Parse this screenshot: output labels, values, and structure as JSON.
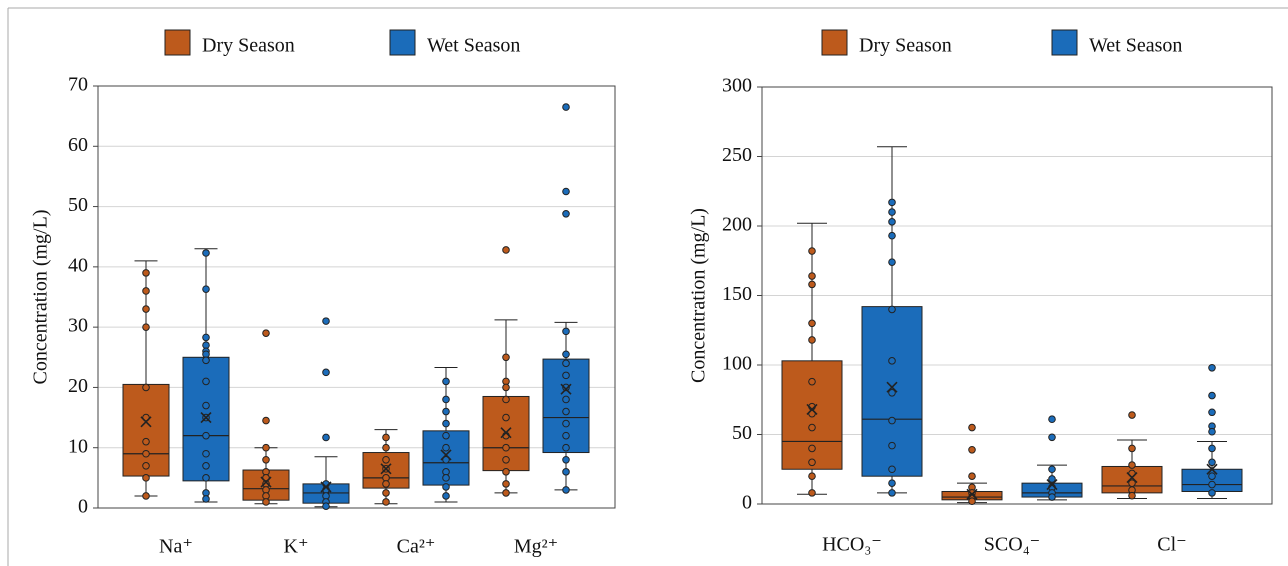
{
  "chart_data": [
    {
      "type": "box",
      "ylabel": "Concentration (mg/L)",
      "categories": [
        "Na⁺",
        "K⁺",
        "Ca²⁺",
        "Mg²⁺"
      ],
      "ylim": [
        0,
        70
      ],
      "yticks": [
        0,
        10,
        20,
        30,
        40,
        50,
        60,
        70
      ],
      "grid": true,
      "series": [
        {
          "name": "Dry Season",
          "color": "#bd5a1c",
          "min": [
            2,
            0.7,
            0.7,
            2.5
          ],
          "q1": [
            5.3,
            1.3,
            3.3,
            6.2
          ],
          "median": [
            9,
            3.2,
            5,
            10
          ],
          "q3": [
            20.5,
            6.3,
            9.2,
            18.5
          ],
          "max": [
            41,
            10,
            13,
            31.2
          ],
          "mean": [
            14.3,
            4.3,
            6.5,
            12.5
          ],
          "points": [
            [
              39,
              36,
              33,
              30,
              20,
              15,
              11,
              9,
              7,
              5,
              2
            ],
            [
              29,
              14.5,
              10,
              8,
              6,
              5,
              4,
              3,
              2,
              1
            ],
            [
              11.7,
              10,
              8,
              6.5,
              5,
              4,
              2.5,
              1
            ],
            [
              42.8,
              25,
              21,
              20,
              18,
              15,
              12,
              10,
              8,
              6,
              4,
              2.5
            ]
          ]
        },
        {
          "name": "Wet Season",
          "color": "#1b6cba",
          "min": [
            1,
            0.2,
            1,
            3
          ],
          "q1": [
            4.5,
            0.8,
            3.8,
            9.2
          ],
          "median": [
            12,
            2.5,
            7.5,
            15
          ],
          "q3": [
            25,
            4,
            12.8,
            24.7
          ],
          "max": [
            43,
            8.5,
            23.3,
            30.8
          ],
          "mean": [
            15,
            3.5,
            8.8,
            19.7
          ],
          "points": [
            [
              42.3,
              36.3,
              28.3,
              27,
              26,
              25.5,
              24.5,
              21,
              17,
              15,
              12,
              9,
              7,
              5,
              2.5,
              1.5
            ],
            [
              31,
              22.5,
              11.7,
              4,
              3,
              2,
              1,
              0.3
            ],
            [
              21,
              18,
              16,
              14,
              12,
              10,
              8,
              6,
              5,
              3.5,
              2
            ],
            [
              66.5,
              52.5,
              48.8,
              29.3,
              25.5,
              24,
              22,
              20,
              18,
              16,
              14,
              12,
              10,
              8,
              6,
              3
            ]
          ]
        }
      ]
    },
    {
      "type": "box",
      "ylabel": "Concentration (mg/L)",
      "categories": [
        "HCO₃⁻",
        "SCO₄⁻",
        "Cl⁻"
      ],
      "ylim": [
        0,
        300
      ],
      "yticks": [
        0,
        50,
        100,
        150,
        200,
        250,
        300
      ],
      "grid": true,
      "series": [
        {
          "name": "Dry Season",
          "color": "#bd5a1c",
          "min": [
            7,
            1,
            4
          ],
          "q1": [
            25,
            3,
            8
          ],
          "median": [
            45,
            5,
            13
          ],
          "q3": [
            103,
            9,
            27
          ],
          "max": [
            202,
            15,
            46
          ],
          "mean": [
            68,
            7,
            19
          ],
          "points": [
            [
              182,
              164,
              158,
              130,
              118,
              88,
              70,
              65,
              55,
              40,
              30,
              20,
              8
            ],
            [
              55,
              39,
              20,
              12,
              8,
              5,
              2
            ],
            [
              64,
              40,
              28,
              22,
              15,
              10,
              6
            ]
          ]
        },
        {
          "name": "Wet Season",
          "color": "#1b6cba",
          "min": [
            8,
            3,
            4
          ],
          "q1": [
            20,
            5,
            9
          ],
          "median": [
            61,
            8,
            14
          ],
          "q3": [
            142,
            15,
            25
          ],
          "max": [
            257,
            28,
            45
          ],
          "mean": [
            84,
            14,
            25
          ],
          "points": [
            [
              217,
              210,
              203,
              193,
              174,
              140,
              103,
              80,
              60,
              42,
              25,
              15,
              8
            ],
            [
              61,
              48,
              25,
              18,
              12,
              8,
              5
            ],
            [
              98,
              78,
              66,
              56,
              52,
              40,
              30,
              20,
              14,
              8
            ]
          ]
        }
      ]
    }
  ]
}
